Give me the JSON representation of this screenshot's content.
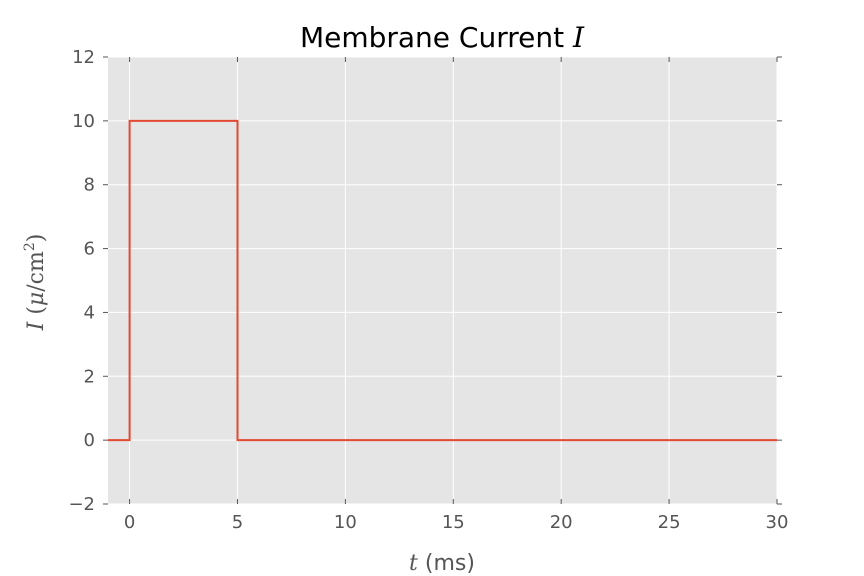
{
  "chart_data": {
    "type": "line",
    "title": {
      "text": "Membrane Current ",
      "math": "I"
    },
    "xlabel": {
      "math": "t",
      "text": " (ms)"
    },
    "ylabel": {
      "math": "I",
      "pre": " (",
      "mu": "μ",
      "slash": "/cm",
      "sup": "2",
      "post": ")"
    },
    "xlim": [
      -1,
      30
    ],
    "ylim": [
      -2,
      12
    ],
    "xticks": [
      0,
      5,
      10,
      15,
      20,
      25,
      30
    ],
    "xtick_labels": [
      "0",
      "5",
      "10",
      "15",
      "20",
      "25",
      "30"
    ],
    "yticks": [
      -2,
      0,
      2,
      4,
      6,
      8,
      10,
      12
    ],
    "ytick_labels": [
      "−2",
      "0",
      "2",
      "4",
      "6",
      "8",
      "10",
      "12"
    ],
    "grid": true,
    "series": [
      {
        "x": [
          -1,
          0,
          0,
          5,
          5,
          30
        ],
        "y": [
          0,
          0,
          10,
          10,
          0,
          0
        ]
      }
    ]
  },
  "colors": {
    "plot_background": "#e5e5e5",
    "grid": "#ffffff",
    "line": "#e24a33",
    "tick": "#555555"
  }
}
